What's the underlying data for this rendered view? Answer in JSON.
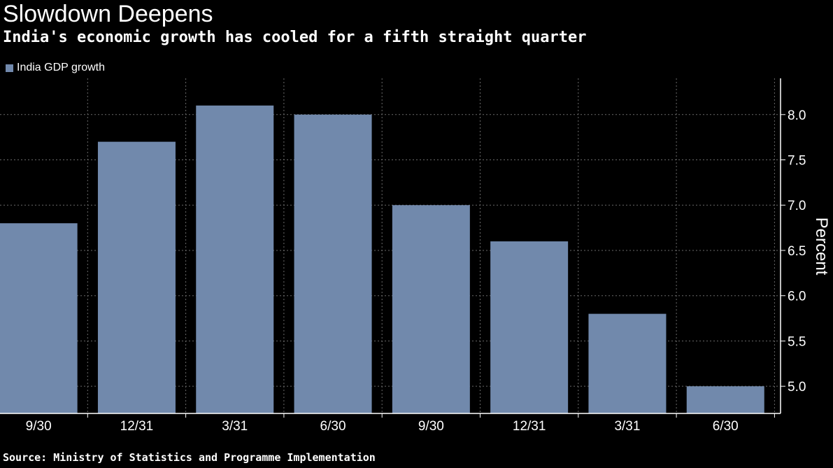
{
  "title": "Slowdown Deepens",
  "subtitle": "India's economic growth has cooled for a fifth straight quarter",
  "source": "Source: Ministry of Statistics and Programme Implementation",
  "colors": {
    "background": "#000000",
    "bar": "#7189ac",
    "text": "#ffffff",
    "grid": "#6a6a6a"
  },
  "chart_data": {
    "type": "bar",
    "categories": [
      "9/30",
      "12/31",
      "3/31",
      "6/30",
      "9/30",
      "12/31",
      "3/31",
      "6/30"
    ],
    "series": [
      {
        "name": "India GDP growth",
        "values": [
          6.8,
          7.7,
          8.1,
          8.0,
          7.0,
          6.6,
          5.8,
          5.0
        ]
      }
    ],
    "ylabel": "Percent",
    "xlabel": "",
    "ylim": [
      4.7,
      8.4
    ],
    "yticks": [
      "5.0",
      "5.5",
      "6.0",
      "6.5",
      "7.0",
      "7.5",
      "8.0"
    ],
    "y_axis_position": "right",
    "legend_position": "top-left",
    "grid": true
  }
}
